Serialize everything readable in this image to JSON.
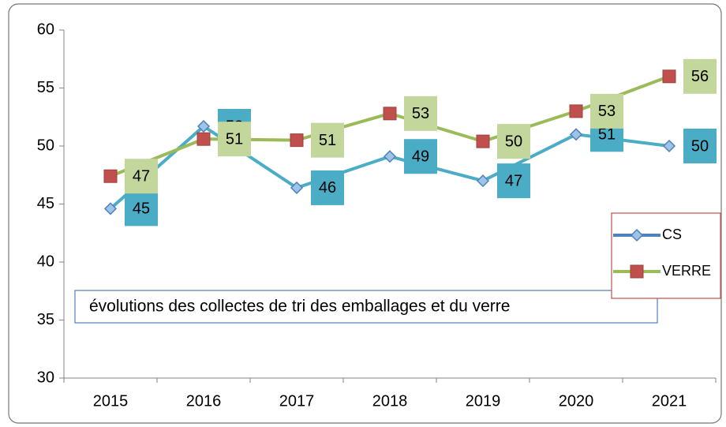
{
  "chart_data": {
    "type": "line",
    "categories": [
      "2015",
      "2016",
      "2017",
      "2018",
      "2019",
      "2020",
      "2021"
    ],
    "series": [
      {
        "name": "CS",
        "color": "#4f81bd",
        "line_color": "#4bacc6",
        "label_color": "#4bacc6",
        "marker": "diamond",
        "values": [
          44.6,
          51.7,
          46.4,
          49.1,
          47,
          51,
          50
        ],
        "value_labels": [
          "45",
          "52",
          "46",
          "49",
          "47",
          "51",
          "50"
        ]
      },
      {
        "name": "VERRE",
        "color": "#c0504d",
        "line_color": "#9bbb59",
        "label_color": "#c3d69b",
        "marker": "square",
        "values": [
          47.4,
          50.6,
          50.5,
          52.8,
          50.4,
          53,
          56
        ],
        "value_labels": [
          "47",
          "51",
          "51",
          "53",
          "50",
          "53",
          "56"
        ]
      }
    ],
    "ylim": [
      30,
      60
    ],
    "yticks": [
      30,
      35,
      40,
      45,
      50,
      55,
      60
    ],
    "grid": false,
    "annotation": "évolutions  des collectes de tri des emballages et du verre",
    "legend": "right"
  }
}
